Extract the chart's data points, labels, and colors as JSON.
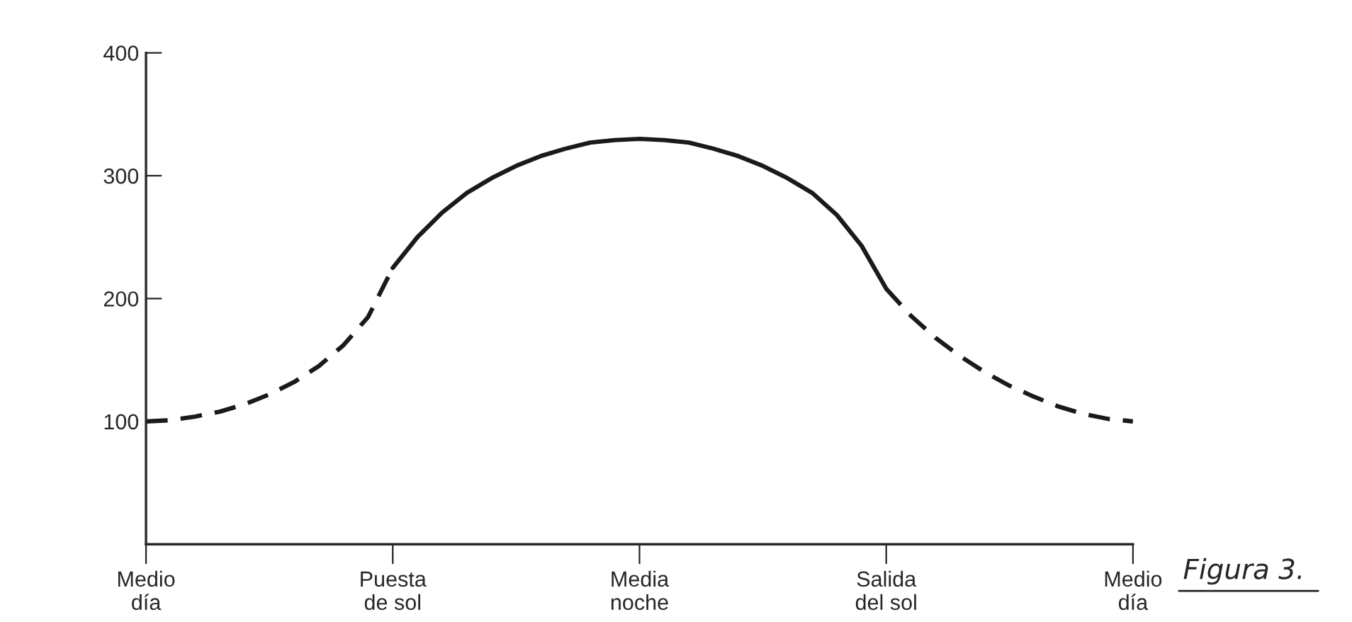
{
  "chart_data": {
    "type": "line",
    "annotations": [
      "Figura 3."
    ],
    "categories": [
      "Medio\ndía",
      null,
      null,
      null,
      null,
      null,
      null,
      null,
      null,
      null,
      "Puesta\nde sol",
      null,
      null,
      null,
      null,
      null,
      null,
      null,
      null,
      null,
      "Media\nnoche",
      null,
      null,
      null,
      null,
      null,
      null,
      null,
      null,
      null,
      "Salida\ndel sol",
      null,
      null,
      null,
      null,
      null,
      null,
      null,
      null,
      null,
      "Medio\ndía"
    ],
    "ylim": [
      0,
      400
    ],
    "yticks": [
      {
        "value": 0,
        "label": null
      },
      100,
      200,
      300,
      400
    ],
    "grid": false,
    "legend": false,
    "marker": "none",
    "series": [
      {
        "color": "#1a1a1a",
        "line_style": "dashed",
        "values": [
          100,
          101,
          104,
          108,
          114,
          122,
          132,
          145,
          162,
          185,
          225,
          null,
          null,
          null,
          null,
          null,
          null,
          null,
          null,
          null,
          null,
          null,
          null,
          null,
          null,
          null,
          null,
          null,
          null,
          null,
          null,
          null,
          null,
          null,
          null,
          null,
          null,
          null,
          null,
          null,
          null
        ]
      },
      {
        "color": "#1a1a1a",
        "line_style": "solid",
        "values": [
          null,
          null,
          null,
          null,
          null,
          null,
          null,
          null,
          null,
          null,
          225,
          250,
          270,
          286,
          298,
          308,
          316,
          322,
          327,
          329,
          330,
          329,
          327,
          322,
          316,
          308,
          298,
          286,
          268,
          243,
          208,
          null,
          null,
          null,
          null,
          null,
          null,
          null,
          null,
          null,
          null
        ]
      },
      {
        "color": "#1a1a1a",
        "line_style": "dashed",
        "values": [
          null,
          null,
          null,
          null,
          null,
          null,
          null,
          null,
          null,
          null,
          null,
          null,
          null,
          null,
          null,
          null,
          null,
          null,
          null,
          null,
          null,
          null,
          null,
          null,
          null,
          null,
          null,
          null,
          null,
          null,
          208,
          186,
          168,
          153,
          140,
          129,
          120,
          112,
          106,
          102,
          100
        ]
      }
    ]
  }
}
